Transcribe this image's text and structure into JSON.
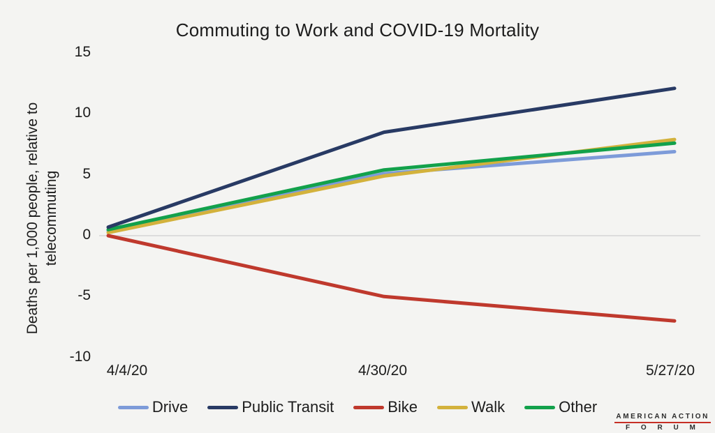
{
  "title": "Commuting to Work and COVID-19 Mortality",
  "y_axis": {
    "label_line1": "Deaths per 1,000 people, relative to",
    "label_line2": "telecommuting",
    "ticks": [
      15,
      10,
      5,
      0,
      -5,
      -10
    ]
  },
  "x_axis": {
    "labels": [
      "4/4/20",
      "4/30/20",
      "5/27/20"
    ]
  },
  "chart_data": {
    "type": "line",
    "title": "Commuting to Work and COVID-19 Mortality",
    "xlabel": "",
    "ylabel": "Deaths per 1,000 people, relative to telecommuting",
    "x": [
      "4/4/20",
      "4/30/20",
      "5/27/20"
    ],
    "series": [
      {
        "name": "Drive",
        "color": "#7d9bd9",
        "values": [
          0.4,
          5.1,
          6.9
        ]
      },
      {
        "name": "Public Transit",
        "color": "#283a64",
        "values": [
          0.7,
          8.5,
          12.1
        ]
      },
      {
        "name": "Bike",
        "color": "#bf392d",
        "values": [
          0.0,
          -5.0,
          -7.0
        ]
      },
      {
        "name": "Walk",
        "color": "#d3b23c",
        "values": [
          0.25,
          4.9,
          7.9
        ]
      },
      {
        "name": "Other",
        "color": "#12a14b",
        "values": [
          0.5,
          5.4,
          7.6
        ]
      }
    ],
    "ylim": [
      -10,
      15
    ],
    "grid": "zero-baseline only",
    "legend_position": "bottom"
  },
  "logo": {
    "line1": "AMERICAN ACTION",
    "line2": "F O R U M",
    "underline_color": "#c62f26"
  },
  "colors": {
    "background": "#f4f4f2",
    "zero_gridline": "#dcdcdc",
    "text": "#1c1c1c"
  }
}
